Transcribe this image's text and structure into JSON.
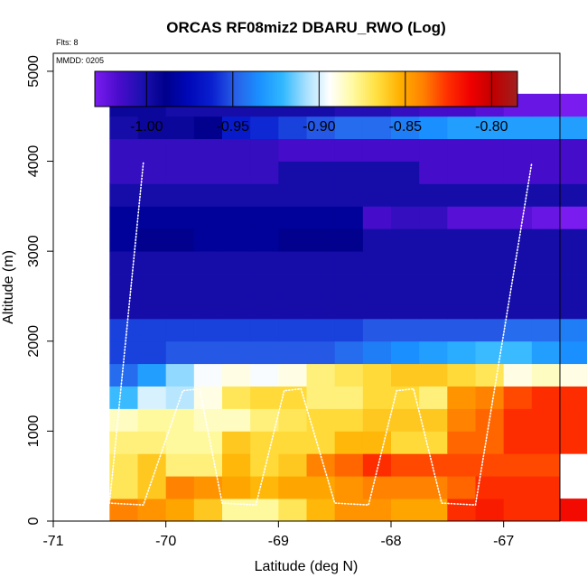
{
  "chart_data": {
    "type": "heatmap",
    "title": "ORCAS RF08miz2 DBARU_RWO (Log)",
    "annotations": [
      "Flts: 8",
      "MMDD: 0205"
    ],
    "xlabel": "Latitude (deg N)",
    "ylabel": "Altitude (m)",
    "xlim": [
      -71,
      -66.5
    ],
    "ylim": [
      0,
      5200
    ],
    "xticks": [
      -71,
      -70,
      -69,
      -68,
      -67
    ],
    "xtick_labels": [
      "-71",
      "-70",
      "-69",
      "-68",
      "-67"
    ],
    "yticks": [
      0,
      1000,
      2000,
      3000,
      4000,
      5000
    ],
    "ytick_labels": [
      "0",
      "1000",
      "2000",
      "3000",
      "4000",
      "5000"
    ],
    "colorbar": {
      "range": [
        -1.03,
        -0.785
      ],
      "ticks": [
        -1.0,
        -0.95,
        -0.9,
        -0.85,
        -0.8
      ],
      "tick_labels": [
        "-1.00",
        "-0.95",
        "-0.90",
        "-0.85",
        "-0.80"
      ],
      "colors": [
        "#7a1cf0",
        "#4a0ccc",
        "#1c10b0",
        "#00008c",
        "#0008b8",
        "#0a20d0",
        "#2860e8",
        "#1a90ff",
        "#30b8ff",
        "#a8e0ff",
        "#ffffff",
        "#fffaa0",
        "#ffe040",
        "#ffb000",
        "#ff8000",
        "#ff3000",
        "#f00000",
        "#c00000",
        "#a02020"
      ]
    },
    "cells": {
      "lat_start": -70.5,
      "lat_step": 0.25,
      "alt_step": 250,
      "rows": [
        [
          -0.84,
          -0.845,
          -0.85,
          -0.86,
          -0.88,
          -0.88,
          -0.87,
          -0.855,
          -0.845,
          -0.845,
          -0.85,
          -0.85,
          -0.825,
          -0.82,
          -0.825,
          -0.825,
          -0.815
        ],
        [
          -0.87,
          -0.86,
          -0.84,
          -0.845,
          -0.85,
          -0.855,
          -0.85,
          -0.85,
          -0.845,
          -0.84,
          -0.84,
          -0.84,
          -0.835,
          -0.825,
          -0.825,
          -0.825
        ],
        [
          -0.87,
          -0.86,
          -0.875,
          -0.875,
          -0.855,
          -0.865,
          -0.86,
          -0.84,
          -0.835,
          -0.825,
          -0.83,
          -0.83,
          -0.83,
          -0.83,
          -0.83,
          -0.83
        ],
        [
          -0.875,
          -0.875,
          -0.88,
          -0.88,
          -0.86,
          -0.865,
          -0.865,
          -0.865,
          -0.855,
          -0.855,
          -0.865,
          -0.865,
          -0.835,
          -0.835,
          -0.825,
          -0.825,
          -0.825,
          -0.825
        ],
        [
          -0.885,
          -0.88,
          -0.88,
          -0.885,
          -0.885,
          -0.875,
          -0.87,
          -0.865,
          -0.865,
          -0.86,
          -0.86,
          -0.86,
          -0.84,
          -0.835,
          -0.825,
          -0.825,
          -0.825
        ],
        [
          -0.92,
          -0.9,
          -0.905,
          -0.89,
          -0.87,
          -0.865,
          -0.865,
          -0.875,
          -0.875,
          -0.865,
          -0.865,
          -0.875,
          -0.845,
          -0.84,
          -0.83,
          -0.825,
          -0.825
        ],
        [
          -0.945,
          -0.93,
          -0.91,
          -0.895,
          -0.89,
          -0.895,
          -0.89,
          -0.875,
          -0.87,
          -0.865,
          -0.86,
          -0.86,
          -0.865,
          -0.87,
          -0.89,
          -0.885,
          -0.89
        ],
        [
          -0.955,
          -0.955,
          -0.95,
          -0.95,
          -0.95,
          -0.95,
          -0.95,
          -0.95,
          -0.945,
          -0.94,
          -0.935,
          -0.93,
          -0.925,
          -0.92,
          -0.92,
          -0.93,
          -0.935
        ],
        [
          -0.955,
          -0.955,
          -0.955,
          -0.955,
          -0.955,
          -0.955,
          -0.955,
          -0.955,
          -0.955,
          -0.95,
          -0.95,
          -0.95,
          -0.95,
          -0.95,
          -0.945,
          -0.945,
          -0.94
        ],
        [
          -1.0,
          -1.0,
          -1.0,
          -1.0,
          -1.0,
          -1.0,
          -1.0,
          -1.0,
          -1.0,
          -1.0,
          -1.0,
          -1.0,
          -1.0,
          -1.0,
          -1.0,
          -1.0,
          -1.0
        ],
        [
          -1.0,
          -1.0,
          -1.0,
          -1.0,
          -1.0,
          -1.0,
          -1.0,
          -1.0,
          -1.0,
          -1.0,
          -1.0,
          -1.0,
          -1.0,
          -1.0,
          -1.0,
          -1.0,
          -1.0,
          -1.0
        ],
        [
          -1.0,
          -1.0,
          -1.0,
          -1.0,
          -1.0,
          -1.0,
          -1.0,
          -1.0,
          -1.0,
          -1.0,
          -1.0,
          -1.0,
          -1.0,
          -1.0,
          -1.0,
          -1.0,
          -1.0,
          -1.0
        ],
        [
          -0.985,
          -0.99,
          -0.99,
          -0.985,
          -0.985,
          -0.985,
          -0.99,
          -0.99,
          -0.99,
          -1.0,
          -1.0,
          -1.0,
          -1.0,
          -1.0,
          -1.0,
          -1.0,
          -1.0,
          -1.0
        ],
        [
          -0.985,
          -0.985,
          -0.985,
          -0.985,
          -0.985,
          -0.985,
          -0.985,
          -0.985,
          -0.985,
          -1.015,
          -1.01,
          -1.01,
          -1.02,
          -1.02,
          -1.02,
          -1.025,
          -1.03,
          -1.03
        ],
        [
          -1.0,
          -1.0,
          -1.0,
          -1.0,
          -1.0,
          -1.0,
          -1.0,
          -1.0,
          -1.0,
          -1.0,
          -1.0,
          -1.0,
          -1.0,
          -1.0,
          -1.0,
          -1.0,
          -1.0,
          -1.0
        ],
        [
          -1.01,
          -1.01,
          -1.01,
          -1.01,
          -1.01,
          -1.01,
          -1.0,
          -1.0,
          -1.0,
          -1.0,
          -1.0,
          -1.015,
          -1.015,
          -1.015,
          -1.015,
          -1.015,
          -1.015,
          -1.015
        ],
        [
          -1.01,
          -1.01,
          -1.01,
          -1.01,
          -1.01,
          -1.01,
          -1.015,
          -1.015,
          -1.015,
          -1.015,
          -1.015,
          -1.015,
          -1.015,
          -1.015,
          -1.015,
          -1.015,
          -1.015,
          -1.015
        ],
        [
          -1.0,
          -0.995,
          -0.995,
          -0.99,
          -0.965,
          -0.96,
          -0.955,
          -0.95,
          -0.945,
          -0.945,
          -0.94,
          -0.935,
          -0.93,
          -0.93,
          -0.93,
          -0.93,
          -0.93,
          -0.93
        ],
        [
          -0.995,
          -0.995,
          -1.0,
          -1.0,
          -1.0,
          -1.0,
          -1.0,
          -1.0,
          -1.005,
          -1.005,
          -1.01,
          -1.015,
          -1.015,
          -1.02,
          -1.025,
          -1.025,
          -1.03,
          -1.03,
          -1.03
        ]
      ]
    },
    "flight_track": {
      "description": "dotted flight track profiles",
      "points": [
        [
          -70.2,
          3980
        ],
        [
          -70.5,
          200
        ],
        [
          -70.2,
          180
        ],
        [
          -69.85,
          1450
        ],
        [
          -69.7,
          1470
        ],
        [
          -69.5,
          200
        ],
        [
          -69.2,
          180
        ],
        [
          -68.95,
          1450
        ],
        [
          -68.8,
          1470
        ],
        [
          -68.5,
          200
        ],
        [
          -68.2,
          180
        ],
        [
          -67.95,
          1450
        ],
        [
          -67.8,
          1470
        ],
        [
          -67.55,
          200
        ],
        [
          -67.25,
          180
        ],
        [
          -66.75,
          3980
        ]
      ]
    }
  }
}
